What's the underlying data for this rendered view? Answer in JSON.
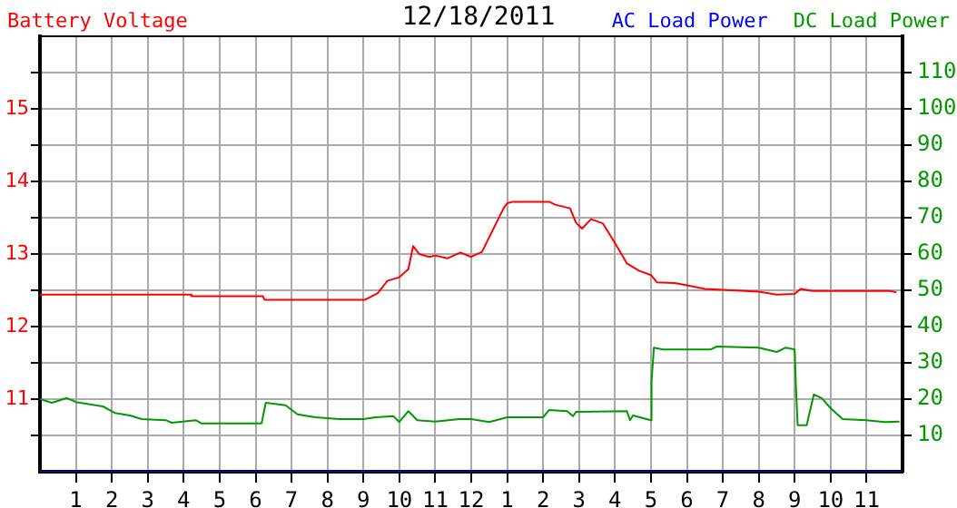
{
  "chart_data": {
    "type": "line",
    "title": "12/18/2011",
    "legend": "top",
    "grid": true,
    "marker": "none",
    "line_style": "solid",
    "xlim": [
      "2011-12-18T00:00",
      "2011-12-19T00:00"
    ],
    "xticks": [
      {
        "value": "2011-12-18T01:00",
        "label": "1"
      },
      {
        "value": "2011-12-18T02:00",
        "label": "2"
      },
      {
        "value": "2011-12-18T03:00",
        "label": "3"
      },
      {
        "value": "2011-12-18T04:00",
        "label": "4"
      },
      {
        "value": "2011-12-18T05:00",
        "label": "5"
      },
      {
        "value": "2011-12-18T06:00",
        "label": "6"
      },
      {
        "value": "2011-12-18T07:00",
        "label": "7"
      },
      {
        "value": "2011-12-18T08:00",
        "label": "8"
      },
      {
        "value": "2011-12-18T09:00",
        "label": "9"
      },
      {
        "value": "2011-12-18T10:00",
        "label": "10"
      },
      {
        "value": "2011-12-18T11:00",
        "label": "11"
      },
      {
        "value": "2011-12-18T12:00",
        "label": "12"
      },
      {
        "value": "2011-12-18T13:00",
        "label": "1"
      },
      {
        "value": "2011-12-18T14:00",
        "label": "2"
      },
      {
        "value": "2011-12-18T15:00",
        "label": "3"
      },
      {
        "value": "2011-12-18T16:00",
        "label": "4"
      },
      {
        "value": "2011-12-18T17:00",
        "label": "5"
      },
      {
        "value": "2011-12-18T18:00",
        "label": "6"
      },
      {
        "value": "2011-12-18T19:00",
        "label": "7"
      },
      {
        "value": "2011-12-18T20:00",
        "label": "8"
      },
      {
        "value": "2011-12-18T21:00",
        "label": "9"
      },
      {
        "value": "2011-12-18T22:00",
        "label": "10"
      },
      {
        "value": "2011-12-18T23:00",
        "label": "11"
      }
    ],
    "ylim": [
      10,
      16
    ],
    "yticks": [
      {
        "value": 10.5,
        "label": null
      },
      11,
      {
        "value": 11.5,
        "label": null
      },
      12,
      {
        "value": 12.5,
        "label": null
      },
      13,
      {
        "value": 13.5,
        "label": null
      },
      14,
      {
        "value": 14.5,
        "label": null
      },
      15,
      {
        "value": 15.5,
        "label": null
      }
    ],
    "y2lim": [
      0,
      120
    ],
    "y2ticks": [
      10,
      20,
      30,
      40,
      50,
      60,
      70,
      80,
      90,
      100,
      110
    ],
    "series": [
      {
        "name": "Battery Voltage",
        "color": "#ff0000",
        "x": [
          "2011-12-18T00:00",
          "2011-12-18T04:12",
          "2011-12-18T04:13",
          "2011-12-18T06:12",
          "2011-12-18T06:15",
          "2011-12-18T09:03",
          "2011-12-18T09:24",
          "2011-12-18T09:40",
          "2011-12-18T10:00",
          "2011-12-18T10:15",
          "2011-12-18T10:23",
          "2011-12-18T10:33",
          "2011-12-18T10:50",
          "2011-12-18T11:00",
          "2011-12-18T11:20",
          "2011-12-18T11:42",
          "2011-12-18T12:00",
          "2011-12-18T12:18",
          "2011-12-18T12:54",
          "2011-12-18T13:00",
          "2011-12-18T13:10",
          "2011-12-18T14:10",
          "2011-12-18T14:20",
          "2011-12-18T14:45",
          "2011-12-18T14:55",
          "2011-12-18T15:05",
          "2011-12-18T15:20",
          "2011-12-18T15:40",
          "2011-12-18T16:00",
          "2011-12-18T16:20",
          "2011-12-18T16:40",
          "2011-12-18T17:00",
          "2011-12-18T17:10",
          "2011-12-18T17:40",
          "2011-12-18T18:00",
          "2011-12-18T18:30",
          "2011-12-18T20:00",
          "2011-12-18T20:30",
          "2011-12-18T21:00",
          "2011-12-18T21:10",
          "2011-12-18T21:30",
          "2011-12-18T23:40",
          "2011-12-18T23:50"
        ],
        "values": [
          12.44,
          12.44,
          12.42,
          12.42,
          12.37,
          12.37,
          12.46,
          12.63,
          12.68,
          12.79,
          13.11,
          13,
          12.96,
          12.98,
          12.94,
          13.02,
          12.96,
          13.03,
          13.63,
          13.7,
          13.72,
          13.72,
          13.68,
          13.63,
          13.43,
          13.35,
          13.48,
          13.42,
          13.15,
          12.87,
          12.77,
          12.71,
          12.61,
          12.6,
          12.57,
          12.52,
          12.48,
          12.44,
          12.45,
          12.52,
          12.49,
          12.49,
          12.47
        ]
      },
      {
        "name": "AC Load Power",
        "color": "#0000ff",
        "axis": "y2",
        "x": [
          "2011-12-18T00:00",
          "2011-12-19T00:00"
        ],
        "values": [
          0,
          0
        ]
      },
      {
        "name": "DC Load Power",
        "color": "#009900",
        "axis": "y2",
        "x": [
          "2011-12-18T00:00",
          "2011-12-18T00:20",
          "2011-12-18T00:45",
          "2011-12-18T01:00",
          "2011-12-18T01:45",
          "2011-12-18T02:05",
          "2011-12-18T02:30",
          "2011-12-18T02:50",
          "2011-12-18T03:30",
          "2011-12-18T03:40",
          "2011-12-18T04:20",
          "2011-12-18T04:30",
          "2011-12-18T06:10",
          "2011-12-18T06:17",
          "2011-12-18T06:50",
          "2011-12-18T07:10",
          "2011-12-18T07:40",
          "2011-12-18T08:20",
          "2011-12-18T09:00",
          "2011-12-18T09:20",
          "2011-12-18T09:50",
          "2011-12-18T10:00",
          "2011-12-18T10:15",
          "2011-12-18T10:30",
          "2011-12-18T11:00",
          "2011-12-18T11:40",
          "2011-12-18T12:00",
          "2011-12-18T12:30",
          "2011-12-18T13:00",
          "2011-12-18T14:00",
          "2011-12-18T14:10",
          "2011-12-18T14:40",
          "2011-12-18T14:50",
          "2011-12-18T14:55",
          "2011-12-18T16:20",
          "2011-12-18T16:25",
          "2011-12-18T16:30",
          "2011-12-18T17:00",
          "2011-12-18T17:01",
          "2011-12-18T17:05",
          "2011-12-18T17:20",
          "2011-12-18T18:40",
          "2011-12-18T18:50",
          "2011-12-18T20:00",
          "2011-12-18T20:30",
          "2011-12-18T20:45",
          "2011-12-18T21:00",
          "2011-12-18T21:02",
          "2011-12-18T21:05",
          "2011-12-18T21:20",
          "2011-12-18T21:32",
          "2011-12-18T21:45",
          "2011-12-18T22:00",
          "2011-12-18T22:20",
          "2011-12-18T23:00",
          "2011-12-18T23:30",
          "2011-12-18T23:55"
        ],
        "values": [
          20,
          19,
          20.3,
          19.2,
          18,
          16.2,
          15.5,
          14.5,
          14.2,
          13.5,
          14.2,
          13.3,
          13.3,
          19,
          18.3,
          15.8,
          15,
          14.5,
          14.5,
          15,
          15.3,
          13.7,
          16.7,
          14.2,
          13.8,
          14.5,
          14.5,
          13.7,
          15,
          15,
          17,
          16.7,
          15.3,
          16.5,
          16.7,
          14.2,
          15.5,
          14.2,
          25,
          34.2,
          33.7,
          33.7,
          34.5,
          34.2,
          33,
          34.2,
          33.7,
          23.7,
          12.8,
          12.8,
          21.3,
          20.3,
          17.5,
          14.5,
          14.2,
          13.7,
          13.8
        ]
      }
    ]
  }
}
